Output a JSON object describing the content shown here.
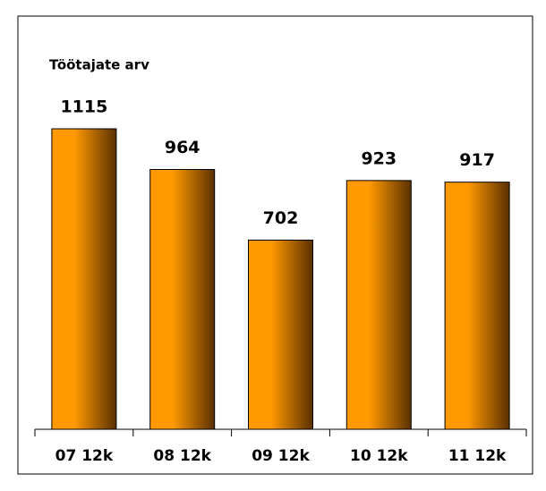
{
  "chart_data": {
    "type": "bar",
    "title": "Töötajate arv",
    "categories": [
      "07 12k",
      "08 12k",
      "09 12k",
      "10 12k",
      "11 12k"
    ],
    "values": [
      1115,
      964,
      702,
      923,
      917
    ],
    "color": "#ff9900"
  }
}
